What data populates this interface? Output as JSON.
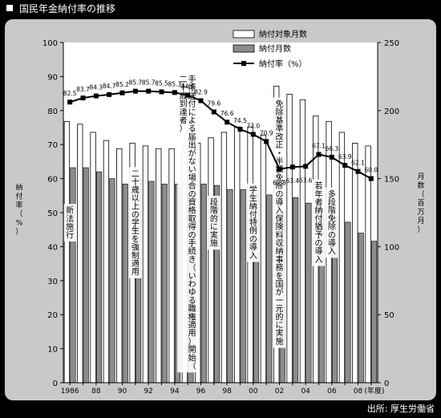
{
  "header": {
    "title": "国民年金納付率の推移"
  },
  "footer": {
    "source": "出所: 厚生労働省"
  },
  "colors": {
    "panel": "#c9c9c9",
    "plot": "#ffffff",
    "bar_target": "#ffffff",
    "bar_paid": "#8c8c8c",
    "line": "#000000"
  },
  "chart_data": {
    "type": "bar+line",
    "x": [
      1986,
      1987,
      1988,
      1989,
      1990,
      1991,
      1992,
      1993,
      1994,
      1995,
      1996,
      1997,
      1998,
      1999,
      2000,
      2001,
      2002,
      2003,
      2004,
      2005,
      2006,
      2007,
      2008,
      2009
    ],
    "x_tick_labels": [
      {
        "year": 1986,
        "label": "1986"
      },
      {
        "year": 1988,
        "label": "88"
      },
      {
        "year": 1990,
        "label": "90"
      },
      {
        "year": 1992,
        "label": "92"
      },
      {
        "year": 1994,
        "label": "94"
      },
      {
        "year": 1996,
        "label": "96"
      },
      {
        "year": 1998,
        "label": "98"
      },
      {
        "year": 2000,
        "label": "00"
      },
      {
        "year": 2002,
        "label": "02"
      },
      {
        "year": 2004,
        "label": "04"
      },
      {
        "year": 2006,
        "label": "06"
      },
      {
        "year": 2008,
        "label": "08"
      }
    ],
    "x_unit_label": "(年度)",
    "series": [
      {
        "name": "納付対象月数",
        "axis": "right",
        "kind": "bar",
        "values": [
          192,
          190,
          184,
          178,
          172,
          176,
          174,
          172,
          172,
          174,
          176,
          180,
          184,
          188,
          188,
          182,
          218,
          212,
          208,
          196,
          192,
          184,
          176,
          174
        ]
      },
      {
        "name": "納付月数",
        "axis": "right",
        "kind": "bar",
        "values": [
          158,
          158,
          155,
          150,
          146,
          150,
          148,
          146,
          146,
          146,
          146,
          145,
          142,
          142,
          140,
          138,
          124,
          136,
          132,
          128,
          122,
          118,
          110,
          104
        ]
      },
      {
        "name": "納付率（%）",
        "axis": "left",
        "kind": "line",
        "values": [
          82.5,
          83.7,
          84.3,
          84.7,
          85.2,
          85.7,
          85.7,
          85.5,
          85.3,
          84.5,
          82.9,
          79.6,
          76.6,
          74.5,
          73.0,
          70.9,
          62.8,
          63.4,
          63.6,
          67.1,
          66.3,
          63.9,
          62.1,
          60.0
        ],
        "labels": [
          "82.5",
          "83.7",
          "84.3",
          "84.7",
          "85.2",
          "85.7",
          "85.7",
          "85.5",
          "85.3",
          "84.5",
          "82.9",
          "79.6",
          "76.6",
          "74.5",
          "73.0",
          "70.9",
          "62.8",
          "63.4",
          "63.6",
          "67.1",
          "66.3",
          "63.9",
          "62.1",
          "60.0"
        ]
      }
    ],
    "y_left": {
      "label": "納付率（%）",
      "ylim": [
        0,
        100
      ],
      "ticks": [
        0,
        10,
        20,
        30,
        40,
        50,
        60,
        70,
        80,
        90,
        100
      ]
    },
    "y_right": {
      "label": "月数（百万月）",
      "ylim": [
        0,
        250
      ],
      "ticks": [
        0,
        50,
        100,
        150,
        200,
        250
      ]
    },
    "legend": {
      "placement": "top-center"
    },
    "annotations": [
      {
        "year": 1986,
        "text": "新法施行"
      },
      {
        "year": 1991,
        "text": "二十歳以上の学生を強制適用"
      },
      {
        "year": 1995,
        "text": "手帳送付による届出がない場合の資格取得の手続き（いわゆる職権適用）開始（二十歳到達者）"
      },
      {
        "year": 1997,
        "text": "段階的に実施"
      },
      {
        "year": 2000,
        "text": "学生納付特例の導入"
      },
      {
        "year": 2002,
        "text": "免除基準改正・半額免除の導入保険料収納事務を国が一元的に実施"
      },
      {
        "year": 2005,
        "text": "若年者納付猶予の導入"
      },
      {
        "year": 2006,
        "text": "多段階免除の導入"
      }
    ]
  }
}
